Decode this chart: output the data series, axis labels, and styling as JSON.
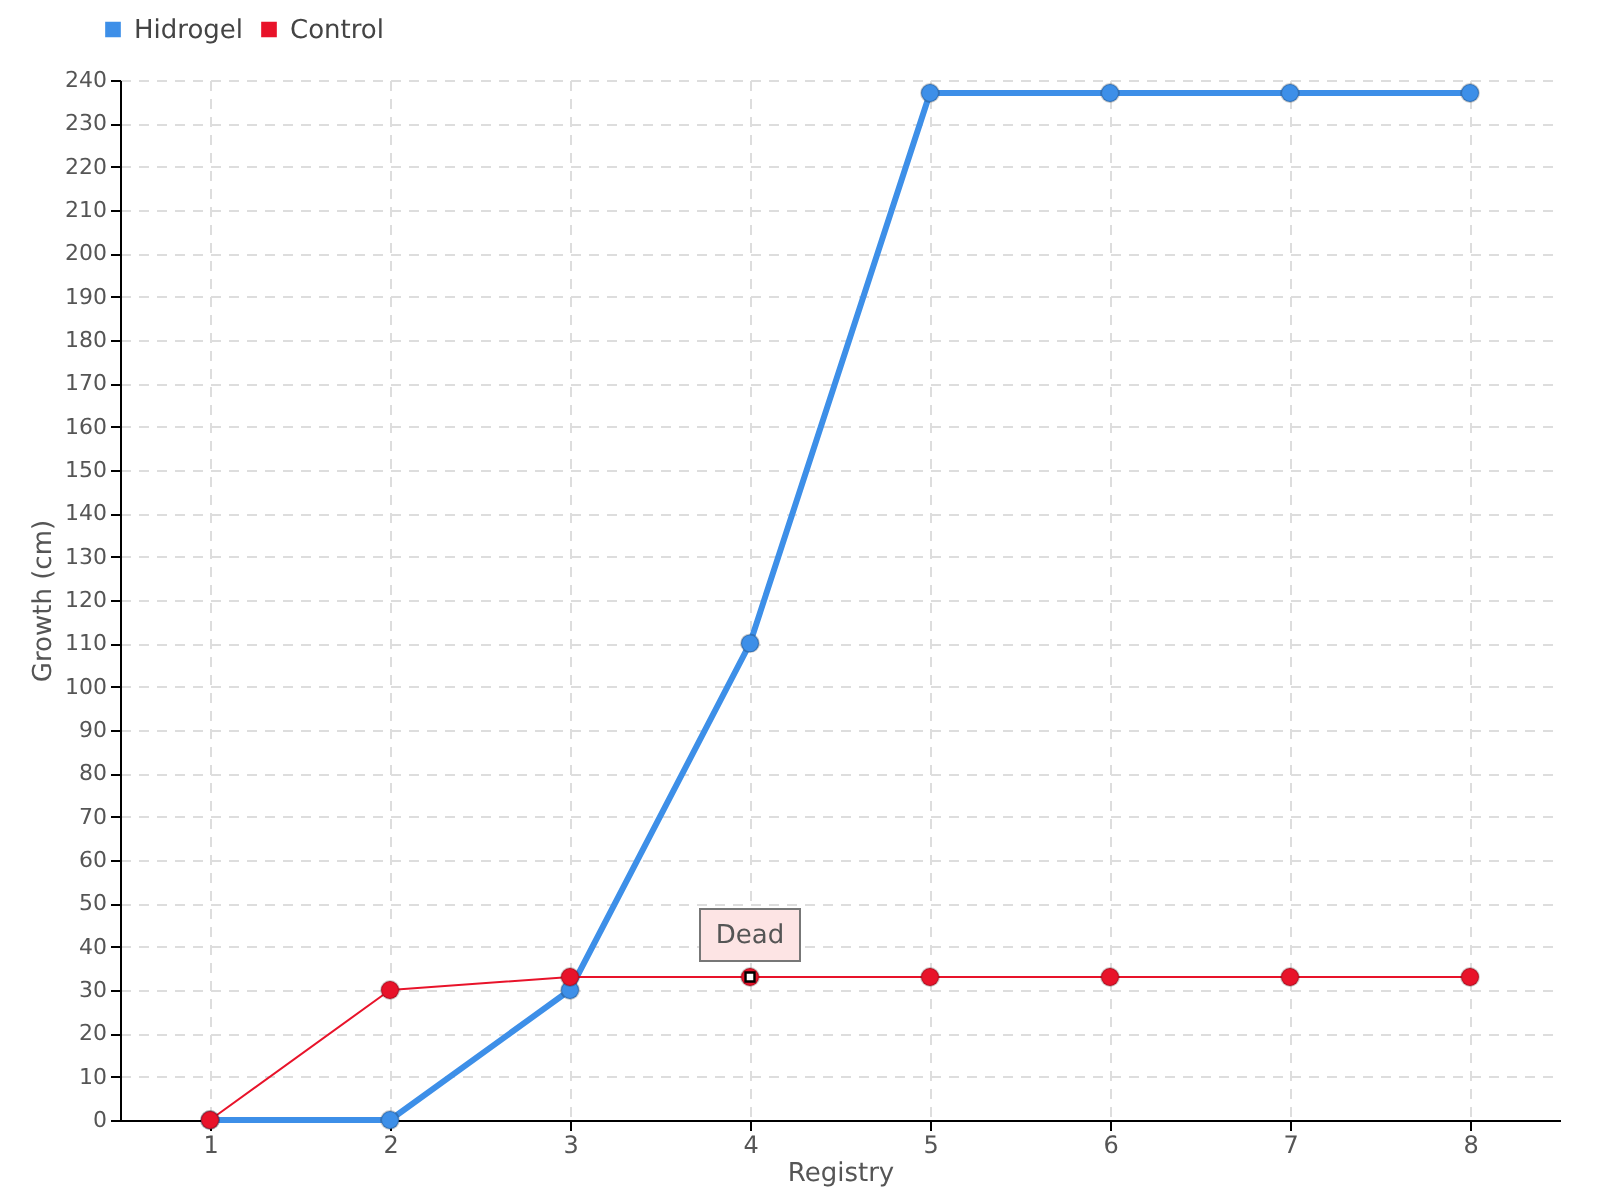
{
  "chart_data": {
    "type": "line",
    "xlabel": "Registry",
    "ylabel": "Growth (cm)",
    "x": [
      1,
      2,
      3,
      4,
      5,
      6,
      7,
      8
    ],
    "series": [
      {
        "name": "Hidrogel",
        "color": "#3d8fe8",
        "values": [
          0,
          0,
          30,
          110,
          237,
          237,
          237,
          237
        ]
      },
      {
        "name": "Control",
        "color": "#e8132a",
        "values": [
          0,
          30,
          33,
          33,
          33,
          33,
          33,
          33
        ]
      }
    ],
    "xlim": [
      0.5,
      8.5
    ],
    "xticks": [
      1,
      2,
      3,
      4,
      5,
      6,
      7,
      8
    ],
    "ylim": [
      0,
      240
    ],
    "yticks": [
      0,
      10,
      20,
      30,
      40,
      50,
      60,
      70,
      80,
      90,
      100,
      110,
      120,
      130,
      140,
      150,
      160,
      170,
      180,
      190,
      200,
      210,
      220,
      230,
      240
    ],
    "annotations": [
      {
        "text": "Dead",
        "x": 4,
        "y": 33
      }
    ],
    "grid": true,
    "legend": "top left",
    "marker": "circle",
    "line_style": "solid"
  }
}
